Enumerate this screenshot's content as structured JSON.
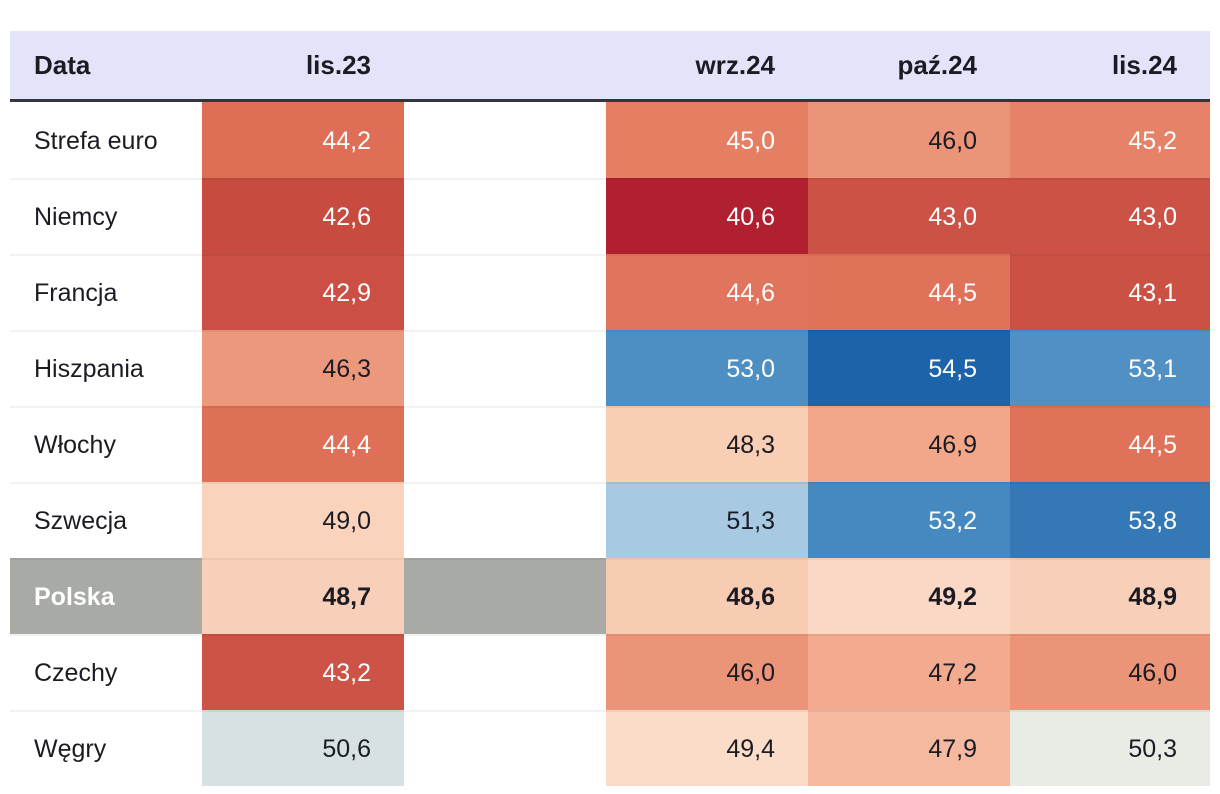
{
  "header": {
    "data_label": "Data",
    "col_lis23": "lis.23",
    "col_wrz24": "wrz.24",
    "col_paz24": "paź.24",
    "col_lis24": "lis.24"
  },
  "colors": {
    "header_bg": "#e3e4f9",
    "header_border": "#35343a",
    "highlight_bg": "#a8aba5",
    "text_dark": "#1b1b24",
    "text_light": "#ffffff",
    "page_bg": "#ffffff"
  },
  "rows": [
    {
      "label": "Strefa euro",
      "highlight": false,
      "cells": [
        {
          "text": "44,2",
          "bg": "#de6e56",
          "light": true
        },
        {
          "text": "45,0",
          "bg": "#e57f64",
          "light": true
        },
        {
          "text": "46,0",
          "bg": "#eb9478",
          "light": false
        },
        {
          "text": "45,2",
          "bg": "#e58267",
          "light": true
        }
      ]
    },
    {
      "label": "Niemcy",
      "highlight": false,
      "cells": [
        {
          "text": "42,6",
          "bg": "#c84b40",
          "light": true
        },
        {
          "text": "40,6",
          "bg": "#b02031",
          "light": true
        },
        {
          "text": "43,0",
          "bg": "#cc5246",
          "light": true
        },
        {
          "text": "43,0",
          "bg": "#cc5246",
          "light": true
        }
      ]
    },
    {
      "label": "Francja",
      "highlight": false,
      "cells": [
        {
          "text": "42,9",
          "bg": "#cb4f44",
          "light": true
        },
        {
          "text": "44,6",
          "bg": "#e1745c",
          "light": true
        },
        {
          "text": "44,5",
          "bg": "#e0725a",
          "light": true
        },
        {
          "text": "43,1",
          "bg": "#cc5145",
          "light": true
        }
      ]
    },
    {
      "label": "Hiszpania",
      "highlight": false,
      "cells": [
        {
          "text": "46,3",
          "bg": "#ec987d",
          "light": false
        },
        {
          "text": "53,0",
          "bg": "#4d8ec3",
          "light": true
        },
        {
          "text": "54,5",
          "bg": "#1c63a9",
          "light": true
        },
        {
          "text": "53,1",
          "bg": "#5190c4",
          "light": true
        }
      ]
    },
    {
      "label": "Włochy",
      "highlight": false,
      "cells": [
        {
          "text": "44,4",
          "bg": "#df7058",
          "light": true
        },
        {
          "text": "48,3",
          "bg": "#f9ceb4",
          "light": false
        },
        {
          "text": "46,9",
          "bg": "#f2a888",
          "light": false
        },
        {
          "text": "44,5",
          "bg": "#e0725a",
          "light": true
        }
      ]
    },
    {
      "label": "Szwecja",
      "highlight": false,
      "cells": [
        {
          "text": "49,0",
          "bg": "#fad3bd",
          "light": false
        },
        {
          "text": "51,3",
          "bg": "#a7cae2",
          "light": false
        },
        {
          "text": "53,2",
          "bg": "#4689c0",
          "light": true
        },
        {
          "text": "53,8",
          "bg": "#3478b5",
          "light": true
        }
      ]
    },
    {
      "label": "Polska",
      "highlight": true,
      "cells": [
        {
          "text": "48,7",
          "bg": "#f8d0b9",
          "light": false
        },
        {
          "text": "48,6",
          "bg": "#f8ccb2",
          "light": false
        },
        {
          "text": "49,2",
          "bg": "#fad8c5",
          "light": false
        },
        {
          "text": "48,9",
          "bg": "#f8cfb8",
          "light": false
        }
      ]
    },
    {
      "label": "Czechy",
      "highlight": false,
      "cells": [
        {
          "text": "43,2",
          "bg": "#cd5347",
          "light": true
        },
        {
          "text": "46,0",
          "bg": "#eb9478",
          "light": false
        },
        {
          "text": "47,2",
          "bg": "#f2ab8f",
          "light": false
        },
        {
          "text": "46,0",
          "bg": "#eb9478",
          "light": false
        }
      ]
    },
    {
      "label": "Węgry",
      "highlight": false,
      "cells": [
        {
          "text": "50,6",
          "bg": "#d6e1e3",
          "light": false
        },
        {
          "text": "49,4",
          "bg": "#fbdcc9",
          "light": false
        },
        {
          "text": "47,9",
          "bg": "#f5b99f",
          "light": false
        },
        {
          "text": "50,3",
          "bg": "#e9ece5",
          "light": false
        }
      ]
    }
  ],
  "chart_data": {
    "type": "heatmap",
    "title": "",
    "columns": [
      "lis.23",
      "wrz.24",
      "paź.24",
      "lis.24"
    ],
    "rows": [
      "Strefa euro",
      "Niemcy",
      "Francja",
      "Hiszpania",
      "Włochy",
      "Szwecja",
      "Polska",
      "Czechy",
      "Węgry"
    ],
    "values": [
      [
        44.2,
        45.0,
        46.0,
        45.2
      ],
      [
        42.6,
        40.6,
        43.0,
        43.0
      ],
      [
        42.9,
        44.6,
        44.5,
        43.1
      ],
      [
        46.3,
        53.0,
        54.5,
        53.1
      ],
      [
        44.4,
        48.3,
        46.9,
        44.5
      ],
      [
        49.0,
        51.3,
        53.2,
        53.8
      ],
      [
        48.7,
        48.6,
        49.2,
        48.9
      ],
      [
        43.2,
        46.0,
        47.2,
        46.0
      ],
      [
        50.6,
        49.4,
        47.9,
        50.3
      ]
    ],
    "highlighted_row": "Polska",
    "colormap": "diverging red-white-blue centered at 50 (red below 50, blue above 50)",
    "value_range": [
      40.6,
      54.5
    ],
    "legend_position": "none",
    "grid": false
  }
}
